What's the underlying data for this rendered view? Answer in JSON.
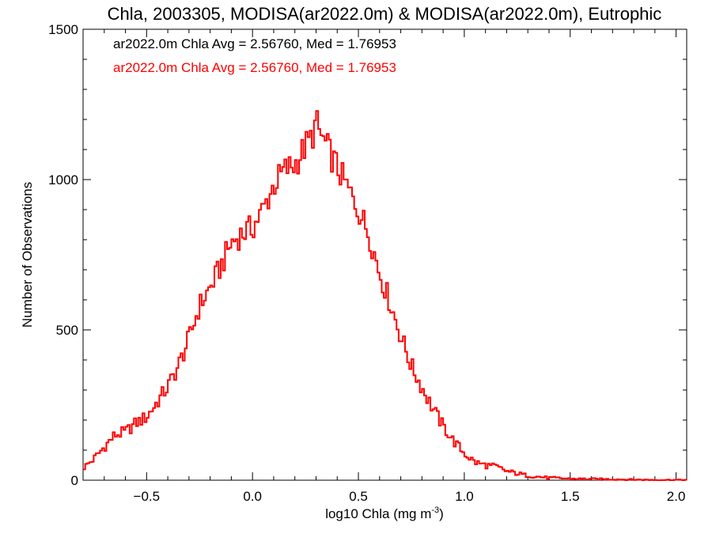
{
  "chart_data": {
    "type": "line",
    "title": "Chla, 2003305, MODISA(ar2022.0m) & MODISA(ar2022.0m), Eutrophic",
    "xlabel": "log10 Chla (mg m",
    "xlabel_sup": "-3",
    "xlabel_close": ")",
    "ylabel": "Number of Observations",
    "xlim": [
      -0.8,
      2.05
    ],
    "ylim": [
      0,
      1500
    ],
    "xticks": [
      -0.5,
      0.0,
      0.5,
      1.0,
      1.5,
      2.0
    ],
    "xtick_labels": [
      "−0.5",
      "0.0",
      "0.5",
      "1.0",
      "1.5",
      "2.0"
    ],
    "yticks": [
      0,
      500,
      1000,
      1500
    ],
    "ytick_labels": [
      "0",
      "500",
      "1000",
      "1500"
    ],
    "grid": false,
    "legend_position": "top-left",
    "bin_width": 0.01,
    "annotations": [
      {
        "text": "ar2022.0m Chla Avg = 2.56760, Med = 1.76953",
        "color": "#000000"
      },
      {
        "text": "ar2022.0m Chla Avg = 2.56760, Med = 1.76953",
        "color": "#ff0000"
      }
    ],
    "series": [
      {
        "color": "#000000",
        "style": "step",
        "x": [
          -0.8,
          -0.75,
          -0.7,
          -0.65,
          -0.6,
          -0.55,
          -0.5,
          -0.45,
          -0.4,
          -0.35,
          -0.3,
          -0.25,
          -0.2,
          -0.15,
          -0.1,
          -0.05,
          0.0,
          0.05,
          0.1,
          0.15,
          0.2,
          0.25,
          0.28,
          0.3,
          0.32,
          0.35,
          0.4,
          0.45,
          0.5,
          0.55,
          0.6,
          0.65,
          0.7,
          0.75,
          0.8,
          0.85,
          0.9,
          0.95,
          1.0,
          1.05,
          1.1,
          1.15,
          1.2,
          1.3,
          1.4,
          1.5,
          1.6,
          1.7,
          1.8,
          1.9,
          2.0,
          2.05
        ],
        "y": [
          40,
          70,
          110,
          150,
          160,
          190,
          210,
          260,
          310,
          380,
          470,
          580,
          640,
          710,
          790,
          820,
          840,
          900,
          980,
          1030,
          1050,
          1110,
          1140,
          1190,
          1150,
          1110,
          1040,
          970,
          900,
          820,
          690,
          590,
          480,
          380,
          310,
          240,
          180,
          130,
          90,
          60,
          50,
          45,
          30,
          15,
          8,
          5,
          4,
          3,
          2,
          1,
          1,
          1
        ]
      },
      {
        "color": "#ff0000",
        "style": "step",
        "x": [
          -0.8,
          -0.75,
          -0.7,
          -0.65,
          -0.6,
          -0.55,
          -0.5,
          -0.45,
          -0.4,
          -0.35,
          -0.3,
          -0.25,
          -0.2,
          -0.15,
          -0.1,
          -0.05,
          0.0,
          0.05,
          0.1,
          0.15,
          0.2,
          0.25,
          0.28,
          0.3,
          0.32,
          0.35,
          0.4,
          0.45,
          0.5,
          0.55,
          0.6,
          0.65,
          0.7,
          0.75,
          0.8,
          0.85,
          0.9,
          0.95,
          1.0,
          1.05,
          1.1,
          1.15,
          1.2,
          1.3,
          1.4,
          1.5,
          1.6,
          1.7,
          1.8,
          1.9,
          2.0,
          2.05
        ],
        "y": [
          40,
          70,
          110,
          150,
          160,
          190,
          210,
          260,
          310,
          380,
          470,
          580,
          640,
          710,
          790,
          820,
          840,
          900,
          980,
          1030,
          1050,
          1110,
          1140,
          1190,
          1150,
          1110,
          1040,
          970,
          900,
          820,
          690,
          590,
          480,
          380,
          310,
          240,
          180,
          130,
          90,
          60,
          50,
          45,
          30,
          15,
          8,
          5,
          4,
          3,
          2,
          1,
          1,
          1
        ]
      }
    ]
  }
}
